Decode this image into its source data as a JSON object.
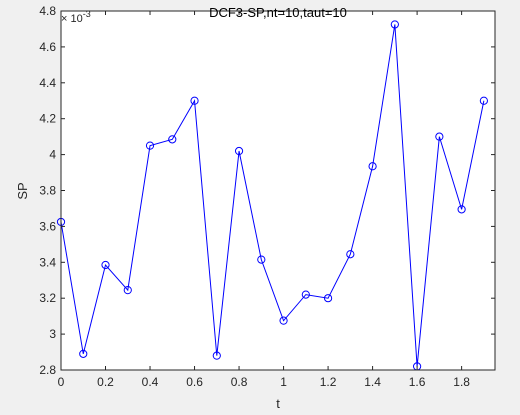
{
  "chart_data": {
    "type": "line",
    "title": "DCF3-SP,nt=10,taut=10",
    "xlabel": "t",
    "ylabel": "SP",
    "y_exponent_label": "× 10",
    "y_exponent_power": "-3",
    "xlim": [
      0,
      1.95
    ],
    "ylim": [
      2.8,
      4.8
    ],
    "x_ticks": [
      0,
      0.2,
      0.4,
      0.6,
      0.8,
      1,
      1.2,
      1.4,
      1.6,
      1.8
    ],
    "x_tick_labels": [
      "0",
      "0.2",
      "0.4",
      "0.6",
      "0.8",
      "1",
      "1.2",
      "1.4",
      "1.6",
      "1.8"
    ],
    "y_ticks": [
      2.8,
      3,
      3.2,
      3.4,
      3.6,
      3.8,
      4,
      4.2,
      4.4,
      4.6,
      4.8
    ],
    "y_tick_labels": [
      "2.8",
      "3",
      "3.2",
      "3.4",
      "3.6",
      "3.8",
      "4",
      "4.2",
      "4.4",
      "4.6",
      "4.8"
    ],
    "grid": false,
    "series": [
      {
        "color": "#0000ff",
        "marker": "circle",
        "x": [
          0,
          0.1,
          0.2,
          0.3,
          0.4,
          0.5,
          0.6,
          0.7,
          0.8,
          0.9,
          1.0,
          1.1,
          1.2,
          1.3,
          1.4,
          1.5,
          1.6,
          1.7,
          1.8,
          1.9
        ],
        "values": [
          3.625,
          2.89,
          3.385,
          3.245,
          4.05,
          4.085,
          4.3,
          2.88,
          4.02,
          3.415,
          3.075,
          3.22,
          3.2,
          3.445,
          3.935,
          4.725,
          2.82,
          4.1,
          3.695,
          4.3
        ]
      }
    ]
  }
}
